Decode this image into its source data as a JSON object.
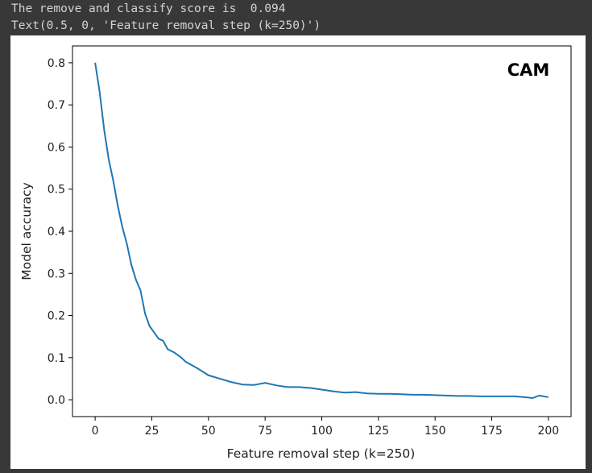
{
  "console": {
    "line1": "The remove and classify score is  0.094",
    "line2": "Text(0.5, 0, 'Feature removal step (k=250)')"
  },
  "chart_data": {
    "type": "line",
    "title": "",
    "xlabel": "Feature removal step (k=250)",
    "ylabel": "Model accuracy",
    "annotation": "CAM",
    "xlim": [
      -10,
      210
    ],
    "ylim": [
      -0.04,
      0.84
    ],
    "xticks": [
      0,
      25,
      50,
      75,
      100,
      125,
      150,
      175,
      200
    ],
    "yticks": [
      0.0,
      0.1,
      0.2,
      0.3,
      0.4,
      0.5,
      0.6,
      0.7,
      0.8
    ],
    "grid": false,
    "color": "#1f77b4",
    "series": [
      {
        "x": [
          0,
          2,
          4,
          6,
          8,
          10,
          12,
          14,
          16,
          18,
          20,
          22,
          24,
          26,
          28,
          30,
          32,
          35,
          38,
          40,
          45,
          50,
          55,
          60,
          65,
          70,
          75,
          80,
          85,
          90,
          95,
          100,
          105,
          110,
          115,
          120,
          125,
          130,
          135,
          140,
          145,
          150,
          155,
          160,
          165,
          170,
          175,
          180,
          185,
          190,
          193,
          196,
          200
        ],
        "y": [
          0.8,
          0.73,
          0.64,
          0.57,
          0.52,
          0.46,
          0.41,
          0.37,
          0.32,
          0.285,
          0.26,
          0.205,
          0.175,
          0.16,
          0.145,
          0.14,
          0.12,
          0.112,
          0.1,
          0.09,
          0.075,
          0.058,
          0.05,
          0.042,
          0.036,
          0.035,
          0.04,
          0.034,
          0.03,
          0.03,
          0.028,
          0.024,
          0.02,
          0.017,
          0.018,
          0.015,
          0.014,
          0.014,
          0.013,
          0.012,
          0.012,
          0.011,
          0.01,
          0.009,
          0.009,
          0.008,
          0.008,
          0.008,
          0.008,
          0.006,
          0.004,
          0.01,
          0.006
        ]
      }
    ]
  }
}
